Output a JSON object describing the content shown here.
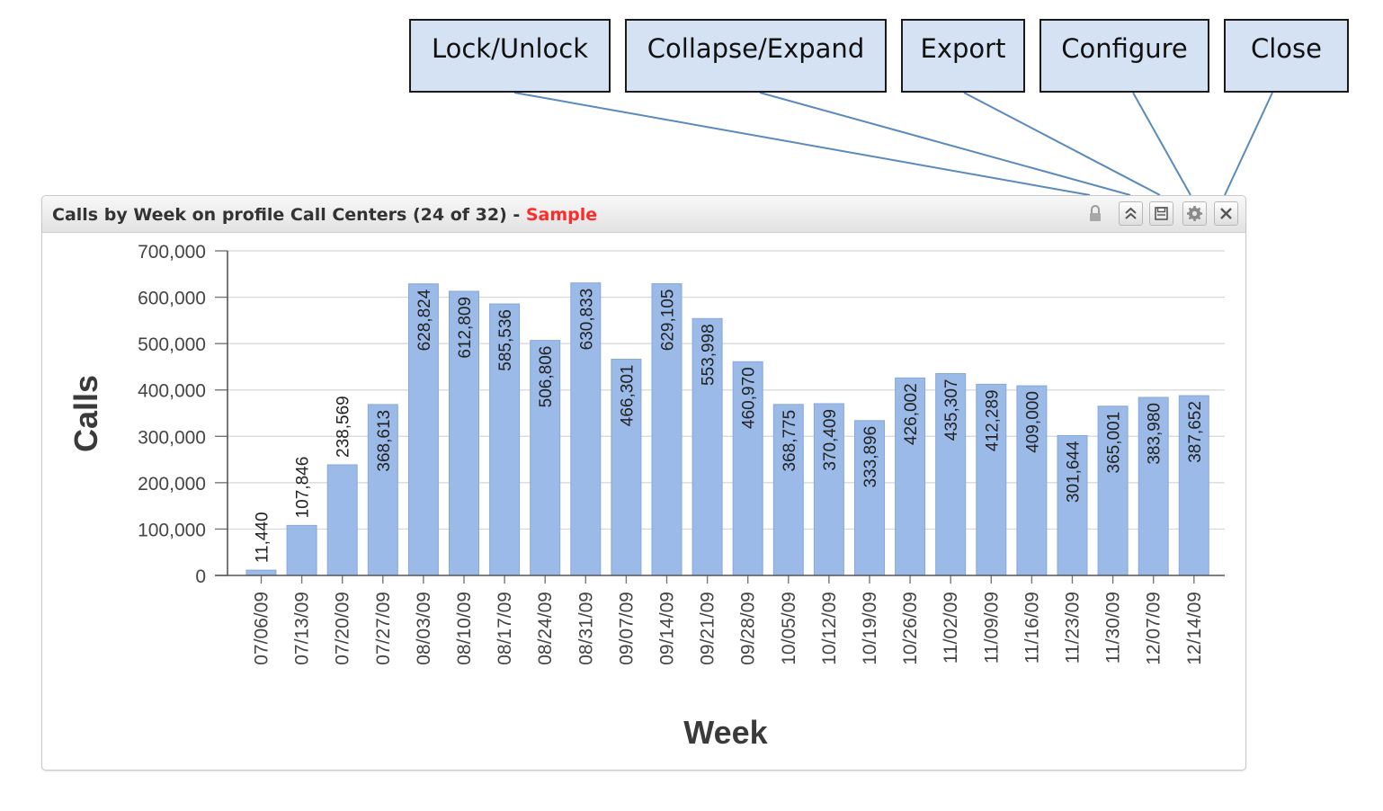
{
  "callouts": {
    "lock_unlock": "Lock/Unlock",
    "collapse_expand": "Collapse/Expand",
    "export": "Export",
    "configure": "Configure",
    "close": "Close"
  },
  "widget": {
    "title": "Calls by Week on profile Call Centers (24 of 32) - ",
    "sample_label": "Sample",
    "icons": [
      "lock-icon",
      "collapse-expand-icon",
      "export-icon",
      "configure-icon",
      "close-icon"
    ]
  },
  "colors": {
    "bar": "#9bbae8",
    "callout_fill": "#d4e2f4",
    "connector": "#5a8abb",
    "sample": "#ff2b2b"
  },
  "chart_data": {
    "type": "bar",
    "xlabel": "Week",
    "ylabel": "Calls",
    "ylim": [
      0,
      700000
    ],
    "yticks": [
      0,
      100000,
      200000,
      300000,
      400000,
      500000,
      600000,
      700000
    ],
    "ytick_labels": [
      "0",
      "100,000",
      "200,000",
      "300,000",
      "400,000",
      "500,000",
      "600,000",
      "700,000"
    ],
    "grid": true,
    "categories": [
      "07/06/09",
      "07/13/09",
      "07/20/09",
      "07/27/09",
      "08/03/09",
      "08/10/09",
      "08/17/09",
      "08/24/09",
      "08/31/09",
      "09/07/09",
      "09/14/09",
      "09/21/09",
      "09/28/09",
      "10/05/09",
      "10/12/09",
      "10/19/09",
      "10/26/09",
      "11/02/09",
      "11/09/09",
      "11/16/09",
      "11/23/09",
      "11/30/09",
      "12/07/09",
      "12/14/09"
    ],
    "values": [
      11440,
      107846,
      238569,
      368613,
      628824,
      612809,
      585536,
      506806,
      630833,
      466301,
      629105,
      553998,
      460970,
      368775,
      370409,
      333896,
      426002,
      435307,
      412289,
      409000,
      301644,
      365001,
      383980,
      387652
    ],
    "value_labels": [
      "11,440",
      "107,846",
      "238,569",
      "368,613",
      "628,824",
      "612,809",
      "585,536",
      "506,806",
      "630,833",
      "466,301",
      "629,105",
      "553,998",
      "460,970",
      "368,775",
      "370,409",
      "333,896",
      "426,002",
      "435,307",
      "412,289",
      "409,000",
      "301,644",
      "365,001",
      "383,980",
      "387,652"
    ]
  }
}
